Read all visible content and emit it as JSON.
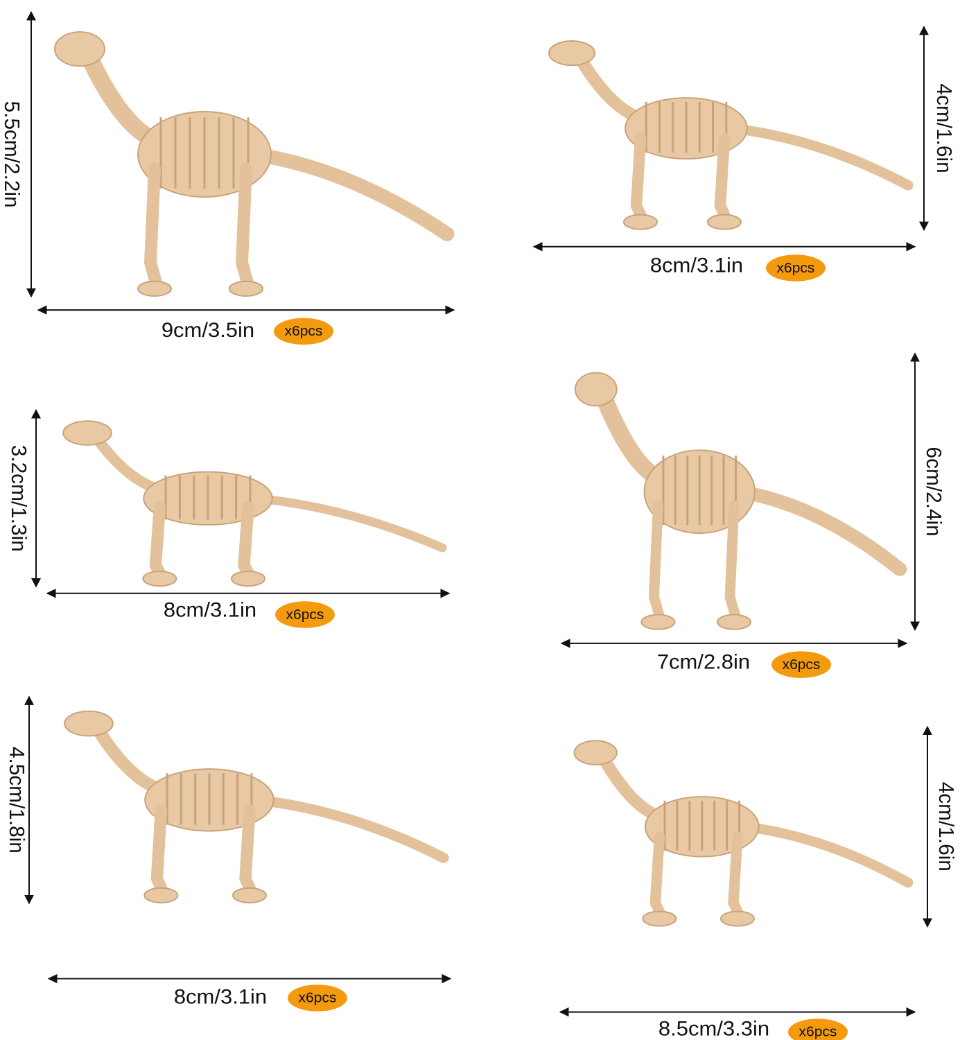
{
  "items": [
    {
      "width": "9cm/3.5in",
      "height": "5.5cm/2.2in",
      "quantity": "x6pcs"
    },
    {
      "width": "8cm/3.1in",
      "height": "4cm/1.6in",
      "quantity": "x6pcs"
    },
    {
      "width": "8cm/3.1in",
      "height": "3.2cm/1.3in",
      "quantity": "x6pcs"
    },
    {
      "width": "7cm/2.8in",
      "height": "6cm/2.4in",
      "quantity": "x6pcs"
    },
    {
      "width": "8cm/3.1in",
      "height": "4.5cm/1.8in",
      "quantity": "x6pcs"
    },
    {
      "width": "8.5cm/3.3in",
      "height": "4cm/1.6in",
      "quantity": "x6pcs"
    }
  ]
}
